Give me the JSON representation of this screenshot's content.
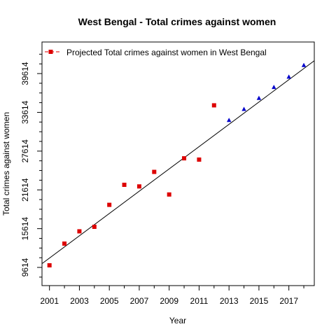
{
  "chart_data": {
    "type": "scatter",
    "title": "West Bengal  -  Total crimes against women",
    "xlabel": "Year",
    "ylabel": "Total crimes against women",
    "xlim": [
      2000.5,
      2018.7
    ],
    "ylim": [
      6800,
      44500
    ],
    "x_ticks": [
      2001,
      2003,
      2005,
      2007,
      2009,
      2011,
      2013,
      2015,
      2017
    ],
    "x_minor_ticks": [
      2002,
      2004,
      2006,
      2008,
      2010,
      2012,
      2014,
      2016,
      2018
    ],
    "y_ticks": [
      9614,
      15614,
      21614,
      27614,
      33614,
      39614
    ],
    "y_minor_ticks": [
      8114,
      11114,
      12614,
      14114,
      17114,
      18614,
      20114,
      23114,
      24614,
      26114,
      29114,
      30614,
      32114,
      35114,
      36614,
      38114,
      41114,
      42614
    ],
    "legend": {
      "position": "top-left",
      "label": "Projected  Total crimes against women  in  West Bengal"
    },
    "series": [
      {
        "marker": "square",
        "color": "#dd0000",
        "x": [
          2001,
          2002,
          2003,
          2004,
          2005,
          2006,
          2007,
          2008,
          2009,
          2010,
          2011,
          2012
        ],
        "y": [
          9940,
          13300,
          15200,
          15900,
          19300,
          22400,
          22150,
          24400,
          20900,
          26500,
          26300,
          34700
        ]
      },
      {
        "marker": "triangle",
        "color": "#0000cc",
        "x": [
          2013,
          2014,
          2015,
          2016,
          2017,
          2018
        ],
        "y": [
          32400,
          34100,
          35800,
          37500,
          39100,
          40900
        ]
      }
    ],
    "trendline": {
      "x": [
        2000.5,
        2018.7
      ],
      "y": [
        10200,
        41600
      ],
      "color": "#000000"
    }
  }
}
